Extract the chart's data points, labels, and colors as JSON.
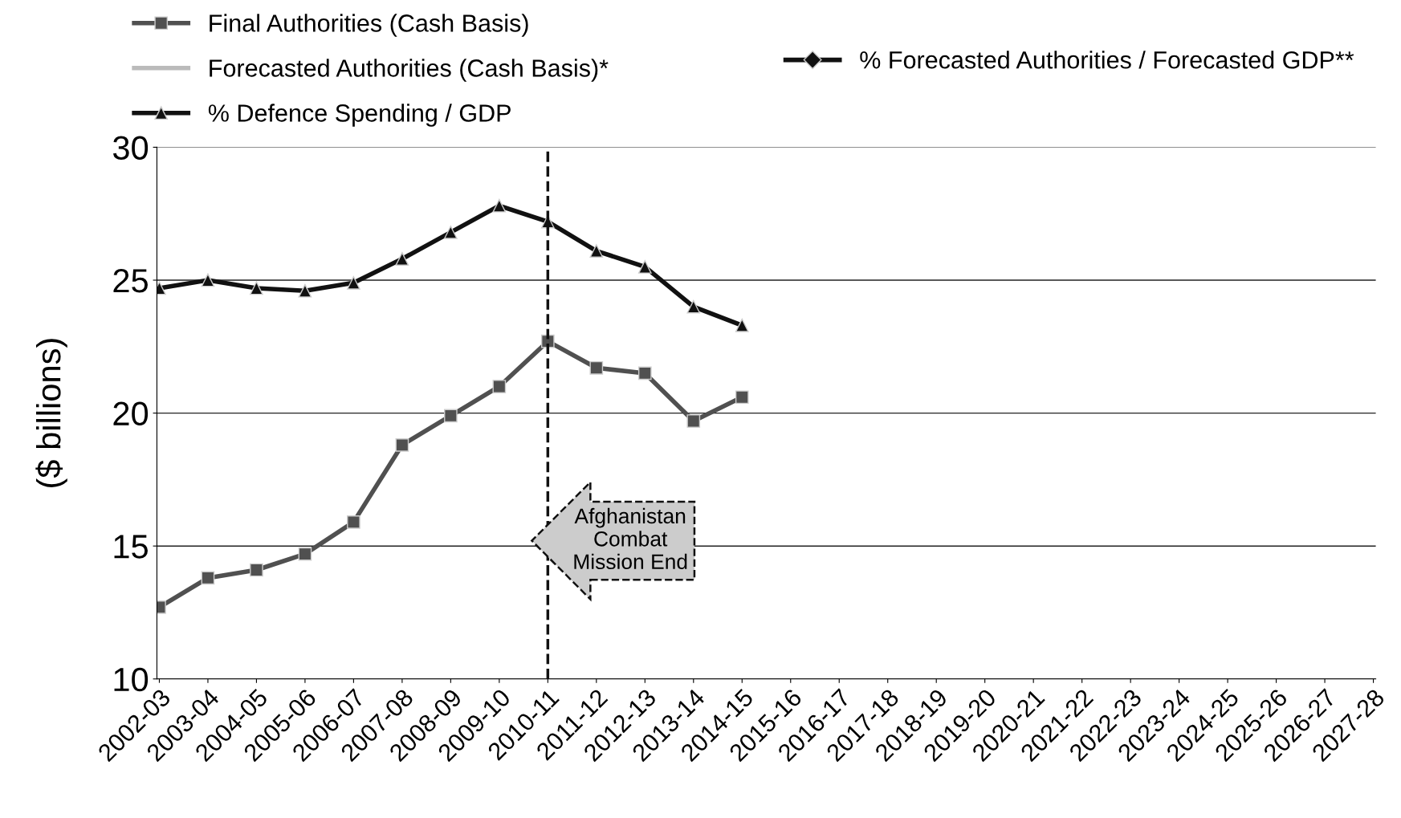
{
  "chart_data": {
    "type": "line",
    "ylabel": "($ billions)",
    "categories": [
      "2002-03",
      "2003-04",
      "2004-05",
      "2005-06",
      "2006-07",
      "2007-08",
      "2008-09",
      "2009-10",
      "2010-11",
      "2011-12",
      "2012-13",
      "2013-14",
      "2014-15",
      "2015-16",
      "2016-17",
      "2017-18",
      "2018-19",
      "2019-20",
      "2020-21",
      "2021-22",
      "2022-23",
      "2023-24",
      "2024-25",
      "2025-26",
      "2026-27",
      "2027-28"
    ],
    "series": [
      {
        "name": "Final Authorities (Cash Basis)",
        "color": "#505050",
        "marker": "square",
        "values": [
          12.7,
          13.8,
          14.1,
          14.7,
          15.9,
          18.8,
          19.9,
          21.0,
          22.7,
          21.7,
          21.5,
          19.7,
          20.6,
          null,
          null,
          null,
          null,
          null,
          null,
          null,
          null,
          null,
          null,
          null,
          null,
          null
        ]
      },
      {
        "name": "Forecasted Authorities (Cash Basis)*",
        "color": "#bbbbbb",
        "marker": "none",
        "values": [
          null,
          null,
          null,
          null,
          null,
          null,
          null,
          null,
          null,
          null,
          null,
          null,
          null,
          null,
          null,
          null,
          null,
          null,
          null,
          null,
          null,
          null,
          null,
          null,
          null,
          null
        ]
      },
      {
        "name": "% Defence Spending / GDP",
        "color": "#111111",
        "marker": "triangle",
        "values": [
          24.7,
          25.0,
          24.7,
          24.6,
          24.9,
          25.8,
          26.8,
          27.8,
          27.2,
          26.1,
          25.5,
          24.0,
          23.3,
          null,
          null,
          null,
          null,
          null,
          null,
          null,
          null,
          null,
          null,
          null,
          null,
          null
        ]
      },
      {
        "name": "% Forecasted Authorities / Forecasted GDP**",
        "color": "#111111",
        "marker": "diamond",
        "values": [
          null,
          null,
          null,
          null,
          null,
          null,
          null,
          null,
          null,
          null,
          null,
          null,
          null,
          null,
          null,
          null,
          null,
          null,
          null,
          null,
          null,
          null,
          null,
          null,
          null,
          null
        ]
      }
    ],
    "ylim": [
      10,
      30
    ],
    "yticks": [
      10,
      15,
      20,
      25,
      30
    ],
    "grid": "y",
    "legend": "top",
    "ref_lines": [
      {
        "axis": "x",
        "value": "2010-11",
        "label": "Afghanistan Combat Mission End",
        "line_style": "dashed",
        "color": "#111111"
      }
    ]
  }
}
